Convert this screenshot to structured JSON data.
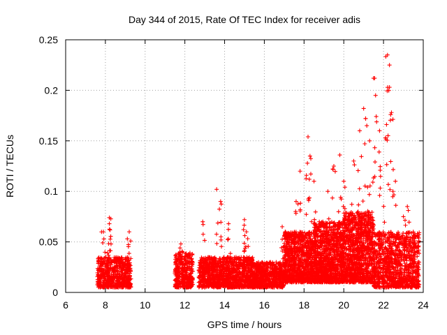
{
  "chart_data": {
    "type": "scatter",
    "title": "Day 344 of 2015, Rate Of TEC Index for receiver adis",
    "xlabel": "GPS time / hours",
    "ylabel": "ROTI / TECUs",
    "xlim": [
      6,
      24
    ],
    "ylim": [
      0,
      0.25
    ],
    "x_ticks": [
      6,
      8,
      10,
      12,
      14,
      16,
      18,
      20,
      22,
      24
    ],
    "y_ticks": [
      0,
      0.05,
      0.1,
      0.15,
      0.2,
      0.25
    ],
    "x_tick_labels": [
      "6",
      "8",
      "10",
      "12",
      "14",
      "16",
      "18",
      "20",
      "22",
      "24"
    ],
    "y_tick_labels": [
      "0",
      "0.05",
      "0.1",
      "0.15",
      "0.2",
      "0.25"
    ],
    "grid": true,
    "marker": "+",
    "series": [
      {
        "name": "ROTI",
        "color": "#ff0000",
        "description": "dense scatter of + markers; envelope by time segment",
        "segments": [
          {
            "x_start": 7.6,
            "x_end": 9.3,
            "base_min": 0.005,
            "base_max": 0.035,
            "count": 600
          },
          {
            "x_start": 11.5,
            "x_end": 12.4,
            "base_min": 0.005,
            "base_max": 0.04,
            "count": 350
          },
          {
            "x_start": 12.7,
            "x_end": 15.5,
            "base_min": 0.005,
            "base_max": 0.035,
            "count": 1100
          },
          {
            "x_start": 15.5,
            "x_end": 17.0,
            "base_min": 0.005,
            "base_max": 0.03,
            "count": 600
          },
          {
            "x_start": 17.0,
            "x_end": 18.5,
            "base_min": 0.01,
            "base_max": 0.06,
            "count": 900
          },
          {
            "x_start": 18.5,
            "x_end": 20.0,
            "base_min": 0.01,
            "base_max": 0.07,
            "count": 1000
          },
          {
            "x_start": 20.0,
            "x_end": 21.5,
            "base_min": 0.01,
            "base_max": 0.08,
            "count": 1000
          },
          {
            "x_start": 21.5,
            "x_end": 23.8,
            "base_min": 0.005,
            "base_max": 0.06,
            "count": 1000
          }
        ],
        "peaks": [
          {
            "x": 7.9,
            "y": 0.06
          },
          {
            "x": 8.2,
            "y": 0.074
          },
          {
            "x": 8.2,
            "y": 0.068
          },
          {
            "x": 9.2,
            "y": 0.06
          },
          {
            "x": 11.8,
            "y": 0.048
          },
          {
            "x": 12.9,
            "y": 0.07
          },
          {
            "x": 13.6,
            "y": 0.102
          },
          {
            "x": 13.8,
            "y": 0.09
          },
          {
            "x": 14.2,
            "y": 0.068
          },
          {
            "x": 15.0,
            "y": 0.072
          },
          {
            "x": 15.1,
            "y": 0.06
          },
          {
            "x": 16.9,
            "y": 0.065
          },
          {
            "x": 17.6,
            "y": 0.09
          },
          {
            "x": 17.8,
            "y": 0.12
          },
          {
            "x": 18.2,
            "y": 0.154
          },
          {
            "x": 18.3,
            "y": 0.135
          },
          {
            "x": 18.5,
            "y": 0.11
          },
          {
            "x": 19.2,
            "y": 0.1
          },
          {
            "x": 19.5,
            "y": 0.125
          },
          {
            "x": 19.8,
            "y": 0.136
          },
          {
            "x": 20.0,
            "y": 0.11
          },
          {
            "x": 20.5,
            "y": 0.13
          },
          {
            "x": 20.8,
            "y": 0.16
          },
          {
            "x": 21.0,
            "y": 0.182
          },
          {
            "x": 21.1,
            "y": 0.172
          },
          {
            "x": 21.3,
            "y": 0.15
          },
          {
            "x": 21.5,
            "y": 0.212
          },
          {
            "x": 21.6,
            "y": 0.195
          },
          {
            "x": 21.8,
            "y": 0.16
          },
          {
            "x": 22.1,
            "y": 0.153
          },
          {
            "x": 22.2,
            "y": 0.235
          },
          {
            "x": 22.3,
            "y": 0.225
          },
          {
            "x": 22.3,
            "y": 0.203
          },
          {
            "x": 22.4,
            "y": 0.178
          },
          {
            "x": 22.6,
            "y": 0.11
          },
          {
            "x": 23.0,
            "y": 0.075
          },
          {
            "x": 23.2,
            "y": 0.085
          },
          {
            "x": 23.5,
            "y": 0.06
          }
        ]
      }
    ]
  }
}
